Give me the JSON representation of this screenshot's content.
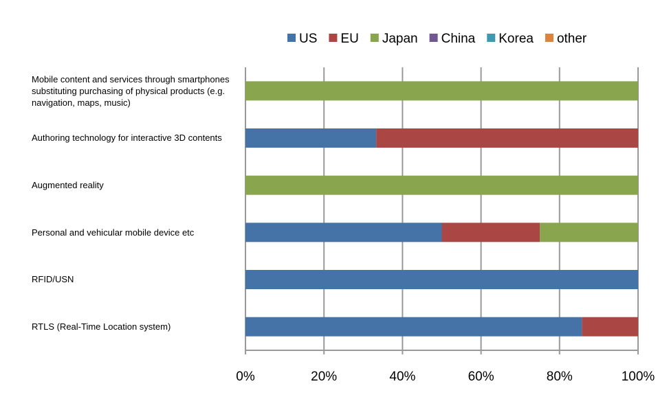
{
  "chart_data": {
    "type": "stacked-bar-horizontal",
    "categories": [
      "Mobile content and services through smartphones substituting purchasing of physical products (e.g. navigation, maps, music)",
      "Authoring technology for interactive 3D contents",
      "Augmented reality",
      "Personal and vehicular mobile device etc",
      "RFID/USN",
      "RTLS (Real-Time Location system)"
    ],
    "series": [
      {
        "name": "US",
        "color": "#4572a7",
        "values": [
          0,
          33.3,
          0,
          50,
          100,
          85.7
        ]
      },
      {
        "name": "EU",
        "color": "#aa4643",
        "values": [
          0,
          66.7,
          0,
          25,
          0,
          14.3
        ]
      },
      {
        "name": "Japan",
        "color": "#89a54e",
        "values": [
          100,
          0,
          100,
          25,
          0,
          0
        ]
      },
      {
        "name": "China",
        "color": "#71588f",
        "values": [
          0,
          0,
          0,
          0,
          0,
          0
        ]
      },
      {
        "name": "Korea",
        "color": "#4198af",
        "values": [
          0,
          0,
          0,
          0,
          0,
          0
        ]
      },
      {
        "name": "other",
        "color": "#db843d",
        "values": [
          0,
          0,
          0,
          0,
          0,
          0
        ]
      }
    ],
    "xlim": [
      0,
      100
    ],
    "xticks": [
      {
        "value": 0,
        "label": "0%"
      },
      {
        "value": 20,
        "label": "20%"
      },
      {
        "value": 40,
        "label": "40%"
      },
      {
        "value": 60,
        "label": "60%"
      },
      {
        "value": 80,
        "label": "80%"
      },
      {
        "value": 100,
        "label": "100%"
      }
    ],
    "grid": true,
    "legend": "top"
  }
}
